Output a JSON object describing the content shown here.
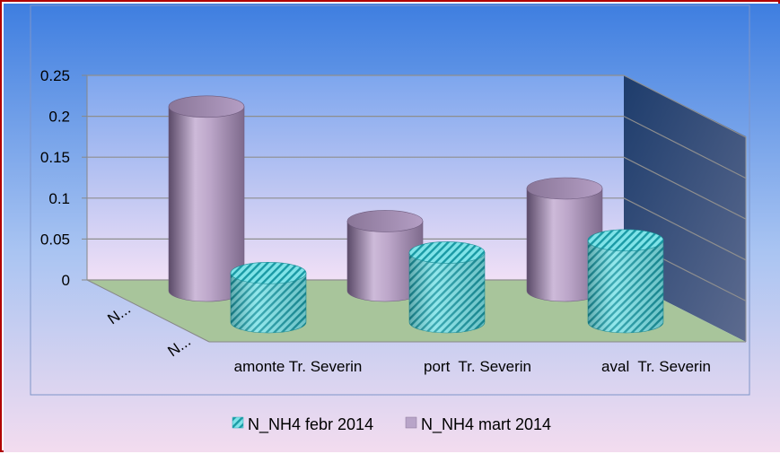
{
  "chart_data": {
    "type": "bar",
    "style": "3d-cylinder",
    "categories": [
      "amonte Tr. Severin",
      "port  Tr. Severin",
      "aval  Tr. Severin"
    ],
    "series_axis_labels": [
      "N...",
      "N..."
    ],
    "series": [
      {
        "name": "N_NH4 febr 2014",
        "values": [
          0.06,
          0.085,
          0.1
        ],
        "color": "#5fd3d8",
        "pattern": "diagonal-hatch"
      },
      {
        "name": "N_NH4 mart 2014",
        "values": [
          0.225,
          0.085,
          0.125
        ],
        "color": "#b8a4c8"
      }
    ],
    "y_ticks": [
      "0",
      "0.05",
      "0.1",
      "0.15",
      "0.2",
      "0.25"
    ],
    "ylim": [
      0,
      0.25
    ],
    "grid": true,
    "legend_position": "bottom",
    "colors": {
      "frame_border": "#b00000",
      "background_top": "#3f7fe0",
      "background_bottom": "#f2dcf0",
      "floor": "#a6c49a",
      "side_wall": "#1c3a68"
    }
  }
}
